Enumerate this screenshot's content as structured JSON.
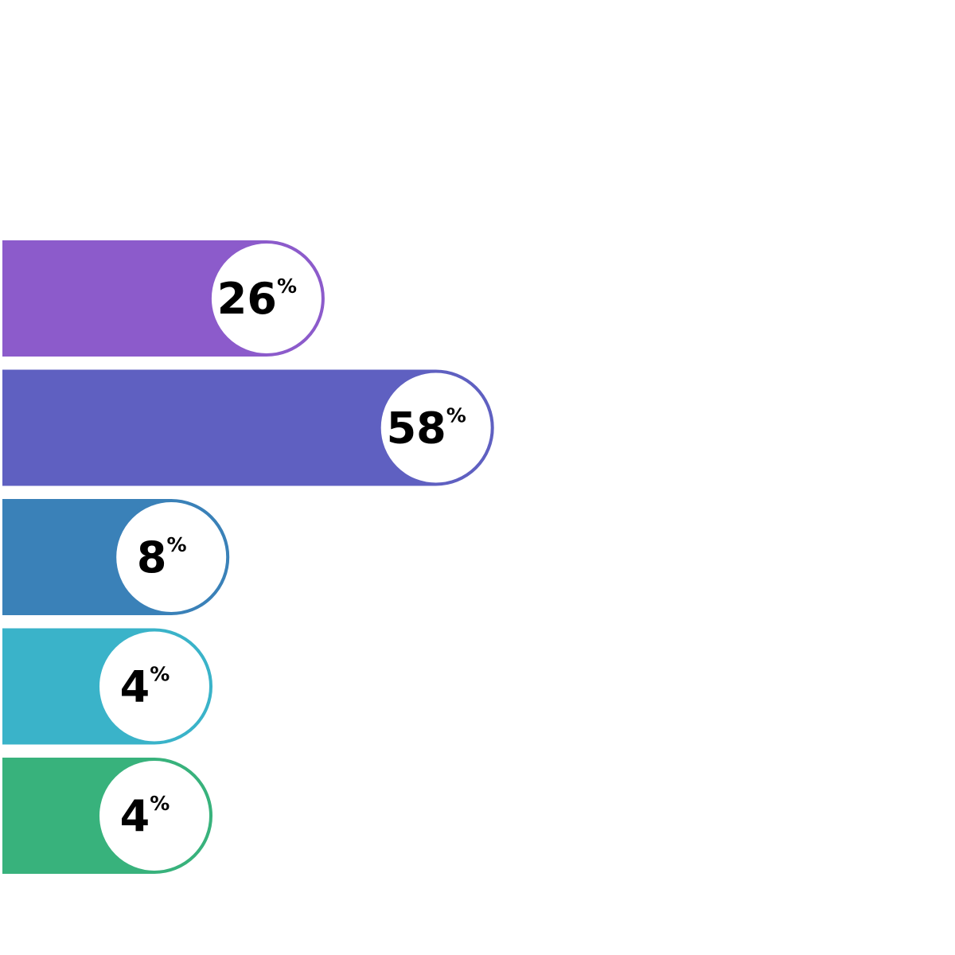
{
  "chart_data": {
    "type": "bar",
    "orientation": "horizontal",
    "values": [
      26,
      58,
      8,
      4,
      4
    ],
    "labels": [
      "26",
      "58",
      "8",
      "4",
      "4"
    ],
    "unit": "%",
    "colors": [
      "#8c5bcb",
      "#5f60c1",
      "#3a81b8",
      "#3ab3c9",
      "#38b27c"
    ],
    "grid": false
  }
}
